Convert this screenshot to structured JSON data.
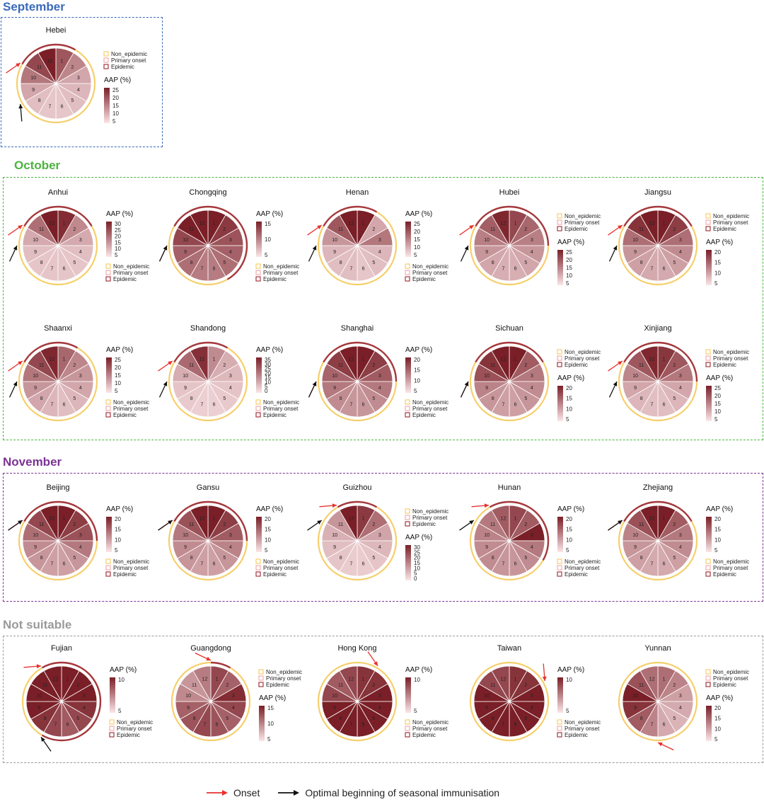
{
  "groups": [
    {
      "key": "sep",
      "title": "September",
      "color": "#3a6aba"
    },
    {
      "key": "oct",
      "title": "October",
      "color": "#4db340"
    },
    {
      "key": "nov",
      "title": "November",
      "color": "#7b3294"
    },
    {
      "key": "ns",
      "title": "Not suitable",
      "color": "#9a9a9a"
    }
  ],
  "legend_labels": {
    "non": "Non_epidemic",
    "primary": "Primary onset",
    "epidemic": "Epidemic",
    "aap": "AAP (%)"
  },
  "footer": {
    "onset": "Onset",
    "optimal": "Optimal beginning of seasonal immunisation"
  },
  "colors": {
    "onset_arrow": "#e8302c",
    "optimal_arrow": "#111111",
    "non_epidemic": "#f6cf6b",
    "primary_onset": "#f2aeb0",
    "epidemic": "#a5383f",
    "scale_low": "#fbe6e8",
    "scale_high": "#7a1f27"
  },
  "chart_data": [
    {
      "type": "pie",
      "region": "Hebei",
      "group": "September",
      "months": [
        1,
        2,
        3,
        4,
        5,
        6,
        7,
        8,
        9,
        10,
        11,
        12
      ],
      "aap": [
        18,
        12,
        8,
        6,
        5,
        4,
        4,
        5,
        8,
        14,
        20,
        26
      ],
      "epidemic_months": [
        11,
        12,
        1
      ],
      "primary_onset_month": null,
      "onset_month": 11,
      "optimal_month": 9,
      "scale_ticks": [
        25,
        20,
        15,
        10,
        5
      ],
      "legend_order": "top"
    },
    {
      "type": "pie",
      "region": "Anhui",
      "group": "October",
      "months": [
        1,
        2,
        3,
        4,
        5,
        6,
        7,
        8,
        9,
        10,
        11,
        12
      ],
      "aap": [
        28,
        14,
        9,
        6,
        5,
        5,
        5,
        5,
        6,
        9,
        18,
        32
      ],
      "epidemic_months": [
        11,
        12,
        1,
        2
      ],
      "primary_onset_month": null,
      "onset_month": 11,
      "optimal_month": 10,
      "scale_ticks": [
        30,
        25,
        20,
        15,
        10,
        5
      ],
      "legend_order": "bottom"
    },
    {
      "type": "pie",
      "region": "Chongqing",
      "group": "October",
      "months": [
        1,
        2,
        3,
        4,
        5,
        6,
        7,
        8,
        9,
        10,
        11,
        12
      ],
      "aap": [
        16,
        13,
        11,
        10,
        9,
        8,
        8,
        9,
        10,
        12,
        15,
        17
      ],
      "epidemic_months": [
        11,
        12,
        1,
        2,
        3,
        4,
        5
      ],
      "primary_onset_month": null,
      "onset_month": 10,
      "optimal_month": 10,
      "scale_ticks": [
        15,
        10,
        5
      ],
      "legend_order": "bottom"
    },
    {
      "type": "pie",
      "region": "Henan",
      "group": "October",
      "months": [
        1,
        2,
        3,
        4,
        5,
        6,
        7,
        8,
        9,
        10,
        11,
        12
      ],
      "aap": [
        25,
        8,
        14,
        6,
        5,
        4,
        5,
        5,
        6,
        10,
        18,
        26
      ],
      "epidemic_months": [
        11,
        12,
        1
      ],
      "primary_onset_month": null,
      "onset_month": 11,
      "optimal_month": 10,
      "scale_ticks": [
        25,
        20,
        15,
        10,
        5
      ],
      "legend_order": "bottom"
    },
    {
      "type": "pie",
      "region": "Hubei",
      "group": "October",
      "months": [
        1,
        2,
        3,
        4,
        5,
        6,
        7,
        8,
        9,
        10,
        11,
        12
      ],
      "aap": [
        20,
        16,
        13,
        10,
        8,
        7,
        7,
        8,
        10,
        13,
        17,
        24
      ],
      "epidemic_months": [
        11,
        12,
        1,
        2,
        3
      ],
      "primary_onset_month": null,
      "onset_month": 11,
      "optimal_month": 10,
      "scale_ticks": [
        25,
        20,
        15,
        10,
        5
      ],
      "legend_order": "top"
    },
    {
      "type": "pie",
      "region": "Jiangsu",
      "group": "October",
      "months": [
        1,
        2,
        3,
        4,
        5,
        6,
        7,
        8,
        9,
        10,
        11,
        12
      ],
      "aap": [
        22,
        17,
        12,
        9,
        7,
        6,
        6,
        7,
        8,
        12,
        18,
        22
      ],
      "epidemic_months": [
        11,
        12,
        1,
        2
      ],
      "primary_onset_month": null,
      "onset_month": 11,
      "optimal_month": 10,
      "scale_ticks": [
        20,
        15,
        10,
        5
      ],
      "legend_order": "top"
    },
    {
      "type": "pie",
      "region": "Shaanxi",
      "group": "October",
      "months": [
        1,
        2,
        3,
        4,
        5,
        6,
        7,
        8,
        9,
        10,
        11,
        12
      ],
      "aap": [
        16,
        12,
        10,
        8,
        6,
        5,
        6,
        8,
        10,
        14,
        20,
        24
      ],
      "epidemic_months": [
        11,
        12,
        1
      ],
      "primary_onset_month": null,
      "onset_month": 11,
      "optimal_month": 10,
      "scale_ticks": [
        25,
        20,
        15,
        10,
        5
      ],
      "legend_order": "bottom"
    },
    {
      "type": "pie",
      "region": "Shandong",
      "group": "October",
      "months": [
        1,
        2,
        3,
        4,
        5,
        6,
        7,
        8,
        9,
        10,
        11,
        12
      ],
      "aap": [
        16,
        10,
        8,
        6,
        5,
        4,
        4,
        5,
        6,
        10,
        22,
        32
      ],
      "epidemic_months": [
        11,
        12,
        1
      ],
      "primary_onset_month": null,
      "onset_month": 11,
      "optimal_month": 10,
      "scale_ticks": [
        35,
        30,
        25,
        20,
        15,
        10,
        5,
        0
      ],
      "legend_order": "bottom"
    },
    {
      "type": "pie",
      "region": "Shanghai",
      "group": "October",
      "months": [
        1,
        2,
        3,
        4,
        5,
        6,
        7,
        8,
        9,
        10,
        11,
        12
      ],
      "aap": [
        20,
        17,
        14,
        11,
        9,
        8,
        8,
        9,
        11,
        13,
        17,
        20
      ],
      "epidemic_months": [
        11,
        12,
        1,
        2,
        3
      ],
      "primary_onset_month": null,
      "onset_month": 10,
      "optimal_month": 10,
      "scale_ticks": [
        20,
        15,
        10,
        5
      ],
      "legend_order": "bottom"
    },
    {
      "type": "pie",
      "region": "Sichuan",
      "group": "October",
      "months": [
        1,
        2,
        3,
        4,
        5,
        6,
        7,
        8,
        9,
        10,
        11,
        12
      ],
      "aap": [
        20,
        14,
        11,
        9,
        8,
        7,
        7,
        8,
        10,
        15,
        18,
        21
      ],
      "epidemic_months": [
        11,
        12,
        1,
        2
      ],
      "primary_onset_month": null,
      "onset_month": 10,
      "optimal_month": 10,
      "scale_ticks": [
        20,
        15,
        10,
        5
      ],
      "legend_order": "top"
    },
    {
      "type": "pie",
      "region": "Xinjiang",
      "group": "October",
      "months": [
        1,
        2,
        3,
        4,
        5,
        6,
        7,
        8,
        9,
        10,
        11,
        12
      ],
      "aap": [
        22,
        18,
        14,
        8,
        6,
        5,
        5,
        6,
        8,
        12,
        18,
        24
      ],
      "epidemic_months": [
        11,
        12,
        1,
        2,
        3
      ],
      "primary_onset_month": null,
      "onset_month": 11,
      "optimal_month": 10,
      "scale_ticks": [
        25,
        20,
        15,
        10,
        5
      ],
      "legend_order": "top"
    },
    {
      "type": "pie",
      "region": "Beijing",
      "group": "November",
      "months": [
        1,
        2,
        3,
        4,
        5,
        6,
        7,
        8,
        9,
        10,
        11,
        12
      ],
      "aap": [
        20,
        17,
        15,
        11,
        8,
        7,
        7,
        8,
        9,
        12,
        16,
        21
      ],
      "epidemic_months": [
        11,
        12,
        1,
        2,
        3
      ],
      "primary_onset_month": null,
      "onset_month": 11,
      "optimal_month": 11,
      "scale_ticks": [
        20,
        15,
        10,
        5
      ],
      "legend_order": "bottom"
    },
    {
      "type": "pie",
      "region": "Gansu",
      "group": "November",
      "months": [
        1,
        2,
        3,
        4,
        5,
        6,
        7,
        8,
        9,
        10,
        11,
        12
      ],
      "aap": [
        20,
        17,
        14,
        10,
        8,
        7,
        7,
        8,
        9,
        11,
        15,
        20
      ],
      "epidemic_months": [
        11,
        12,
        1,
        2,
        3
      ],
      "primary_onset_month": null,
      "onset_month": 11,
      "optimal_month": 11,
      "scale_ticks": [
        20,
        15,
        10,
        5
      ],
      "legend_order": "bottom"
    },
    {
      "type": "pie",
      "region": "Guizhou",
      "group": "November",
      "months": [
        1,
        2,
        3,
        4,
        5,
        6,
        7,
        8,
        9,
        10,
        11,
        12
      ],
      "aap": [
        26,
        18,
        10,
        7,
        5,
        4,
        4,
        5,
        6,
        8,
        12,
        30
      ],
      "epidemic_months": [
        12,
        1
      ],
      "primary_onset_month": null,
      "onset_month": 12,
      "optimal_month": 11,
      "scale_ticks": [
        30,
        25,
        20,
        15,
        10,
        5,
        0
      ],
      "legend_order": "top"
    },
    {
      "type": "pie",
      "region": "Hunan",
      "group": "November",
      "months": [
        1,
        2,
        3,
        4,
        5,
        6,
        7,
        8,
        9,
        10,
        11,
        12
      ],
      "aap": [
        16,
        14,
        20,
        11,
        9,
        8,
        8,
        9,
        9,
        10,
        11,
        14
      ],
      "epidemic_months": [
        12,
        1,
        2,
        3,
        4
      ],
      "primary_onset_month": null,
      "onset_month": 12,
      "optimal_month": 11,
      "scale_ticks": [
        20,
        15,
        10,
        5
      ],
      "legend_order": "bottom"
    },
    {
      "type": "pie",
      "region": "Zhejiang",
      "group": "November",
      "months": [
        1,
        2,
        3,
        4,
        5,
        6,
        7,
        8,
        9,
        10,
        11,
        12
      ],
      "aap": [
        20,
        14,
        11,
        9,
        7,
        6,
        6,
        7,
        8,
        10,
        15,
        22
      ],
      "epidemic_months": [
        11,
        12,
        1,
        2
      ],
      "primary_onset_month": null,
      "onset_month": 11,
      "optimal_month": 11,
      "scale_ticks": [
        20,
        15,
        10,
        5
      ],
      "legend_order": "bottom"
    },
    {
      "type": "pie",
      "region": "Fujian",
      "group": "Not suitable",
      "months": [
        1,
        2,
        3,
        4,
        5,
        6,
        7,
        8,
        9,
        10,
        11,
        12
      ],
      "aap": [
        13,
        12,
        11,
        9,
        8,
        7,
        8,
        9,
        10,
        11,
        10,
        12
      ],
      "epidemic_months": [
        12,
        1,
        2,
        3,
        4,
        5,
        6,
        7
      ],
      "primary_onset_month": null,
      "onset_month": 12,
      "optimal_month": 8,
      "scale_ticks": [
        10,
        5
      ],
      "legend_order": "bottom"
    },
    {
      "type": "pie",
      "region": "Guangdong",
      "group": "Not suitable",
      "months": [
        1,
        2,
        3,
        4,
        5,
        6,
        7,
        8,
        9,
        10,
        11,
        12
      ],
      "aap": [
        12,
        10,
        14,
        12,
        10,
        11,
        12,
        11,
        10,
        7,
        6,
        8
      ],
      "epidemic_months": [
        1
      ],
      "primary_onset_month": null,
      "onset_month": 1,
      "optimal_month": null,
      "scale_ticks": [
        15,
        10,
        5
      ],
      "legend_order": "top"
    },
    {
      "type": "pie",
      "region": "Hong Kong",
      "group": "Not suitable",
      "months": [
        1,
        2,
        3,
        4,
        5,
        6,
        7,
        8,
        9,
        10,
        11,
        12
      ],
      "aap": [
        9,
        9,
        10,
        10,
        11,
        12,
        12,
        11,
        10,
        8,
        7,
        8
      ],
      "epidemic_months": [],
      "primary_onset_month": null,
      "onset_month": 2,
      "optimal_month": null,
      "scale_ticks": [
        10,
        5
      ],
      "legend_order": "bottom"
    },
    {
      "type": "pie",
      "region": "Taiwan",
      "group": "Not suitable",
      "months": [
        1,
        2,
        3,
        4,
        5,
        6,
        7,
        8,
        9,
        10,
        11,
        12
      ],
      "aap": [
        9,
        9,
        10,
        11,
        12,
        13,
        13,
        12,
        11,
        10,
        8,
        8
      ],
      "epidemic_months": [],
      "primary_onset_month": null,
      "onset_month": 3,
      "optimal_month": null,
      "scale_ticks": [
        10,
        5
      ],
      "legend_order": "bottom"
    },
    {
      "type": "pie",
      "region": "Yunnan",
      "group": "Not suitable",
      "months": [
        1,
        2,
        3,
        4,
        5,
        6,
        7,
        8,
        9,
        10,
        11,
        12
      ],
      "aap": [
        12,
        10,
        7,
        6,
        5,
        6,
        10,
        14,
        18,
        20,
        15,
        12
      ],
      "epidemic_months": [],
      "primary_onset_month": null,
      "onset_month": 7,
      "optimal_month": null,
      "scale_ticks": [
        20,
        15,
        10,
        5
      ],
      "legend_order": "top"
    }
  ]
}
